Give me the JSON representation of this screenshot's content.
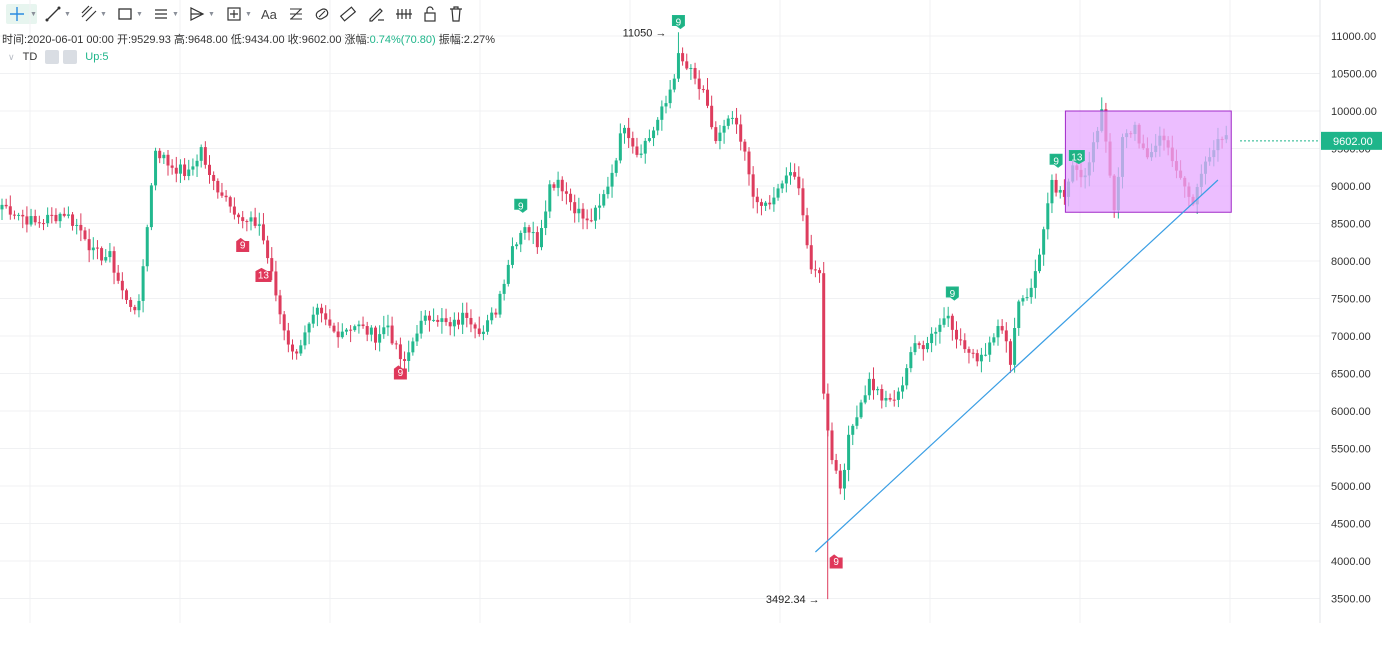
{
  "toolbar": {
    "text_tool_label": "Aa",
    "tools": [
      "crosshair-icon",
      "trend-line-icon",
      "parallel-channel-icon",
      "rectangle-icon",
      "horizontal-lines-icon",
      "pattern-icon",
      "measure-icon",
      "text-icon",
      "fib-icon",
      "brush-icon",
      "ruler-icon",
      "pencil-icon",
      "chart-tools-icon",
      "lock-icon",
      "trash-icon"
    ]
  },
  "info_bar": {
    "time_label": "时间:",
    "time": "2020-06-01 00:00",
    "open_label": "开:",
    "open": "9529.93",
    "high_label": "高:",
    "high": "9648.00",
    "low_label": "低:",
    "low": "9434.00",
    "close_label": "收:",
    "close": "9602.00",
    "change_label": "涨幅:",
    "change": "0.74%(70.80)",
    "amplitude_label": "振幅:",
    "amplitude": "2.27%"
  },
  "indicator": {
    "name": "TD",
    "setting": "Up:5"
  },
  "colors": {
    "up": "#22b88e",
    "down": "#dd3c5d",
    "grid": "#f0f1f3",
    "trendline": "#3a9ee4",
    "box_fill": "#e5a8ff",
    "box_stroke": "#a028c8",
    "price_tag": "#1eb58a"
  },
  "chart_data": {
    "type": "candlestick",
    "y_ticks": [
      "11000.00",
      "10500.00",
      "10000.00",
      "9500.00",
      "9000.00",
      "8500.00",
      "8000.00",
      "7500.00",
      "7000.00",
      "6500.00",
      "6000.00",
      "5500.00",
      "5000.00",
      "4500.00",
      "4000.00",
      "3500.00"
    ],
    "ylim": [
      3400,
      11400
    ],
    "current_price": "9602.00",
    "high_annotation": {
      "label": "11050",
      "value": 11050
    },
    "low_annotation": {
      "label": "3492.34",
      "value": 3492.34
    },
    "td_markers": [
      {
        "label": "9",
        "kind": "down",
        "x_index": 58,
        "value": 8300
      },
      {
        "label": "13",
        "kind": "down",
        "x_index": 63,
        "value": 7900
      },
      {
        "label": "9",
        "kind": "down",
        "x_index": 96,
        "value": 6600
      },
      {
        "label": "9",
        "kind": "up",
        "x_index": 125,
        "value": 8650
      },
      {
        "label": "9",
        "kind": "up",
        "x_index": 163,
        "value": 11100
      },
      {
        "label": "9",
        "kind": "down",
        "x_index": 201,
        "value": 4080
      },
      {
        "label": "9",
        "kind": "up",
        "x_index": 229,
        "value": 7480
      },
      {
        "label": "9",
        "kind": "up",
        "x_index": 254,
        "value": 9250
      },
      {
        "label": "13",
        "kind": "up",
        "x_index": 259,
        "value": 9300
      }
    ],
    "trendline": [
      {
        "x_index": 196,
        "value": 4120
      },
      {
        "x_index": 293,
        "value": 9080
      }
    ],
    "range_box": {
      "x_start": 256,
      "x_end": 295,
      "top": 10000,
      "bottom": 8650
    },
    "anchors": [
      [
        0,
        8750
      ],
      [
        8,
        8500
      ],
      [
        15,
        8650
      ],
      [
        20,
        8350
      ],
      [
        22,
        8100
      ],
      [
        26,
        8050
      ],
      [
        30,
        7450
      ],
      [
        33,
        7380
      ],
      [
        35,
        8500
      ],
      [
        37,
        9500
      ],
      [
        40,
        9300
      ],
      [
        45,
        9150
      ],
      [
        48,
        9500
      ],
      [
        50,
        9100
      ],
      [
        55,
        8800
      ],
      [
        58,
        8500
      ],
      [
        62,
        8500
      ],
      [
        64,
        8050
      ],
      [
        67,
        7300
      ],
      [
        70,
        6750
      ],
      [
        73,
        7000
      ],
      [
        76,
        7300
      ],
      [
        80,
        7050
      ],
      [
        85,
        7150
      ],
      [
        90,
        7000
      ],
      [
        93,
        7150
      ],
      [
        95,
        6800
      ],
      [
        97,
        6600
      ],
      [
        100,
        7100
      ],
      [
        104,
        7300
      ],
      [
        108,
        7100
      ],
      [
        112,
        7300
      ],
      [
        116,
        7050
      ],
      [
        119,
        7350
      ],
      [
        123,
        8200
      ],
      [
        126,
        8500
      ],
      [
        129,
        8250
      ],
      [
        132,
        9000
      ],
      [
        134,
        9100
      ],
      [
        137,
        8800
      ],
      [
        141,
        8500
      ],
      [
        144,
        8700
      ],
      [
        147,
        9200
      ],
      [
        150,
        9850
      ],
      [
        153,
        9450
      ],
      [
        156,
        9650
      ],
      [
        160,
        10100
      ],
      [
        163,
        10700
      ],
      [
        166,
        10500
      ],
      [
        169,
        10200
      ],
      [
        172,
        9600
      ],
      [
        176,
        9900
      ],
      [
        179,
        9400
      ],
      [
        182,
        8700
      ],
      [
        186,
        8800
      ],
      [
        189,
        9150
      ],
      [
        192,
        9050
      ],
      [
        195,
        7800
      ],
      [
        197,
        7900
      ],
      [
        198,
        6200
      ],
      [
        200,
        5400
      ],
      [
        202,
        5000
      ],
      [
        204,
        5600
      ],
      [
        206,
        6000
      ],
      [
        209,
        6400
      ],
      [
        213,
        6100
      ],
      [
        216,
        6200
      ],
      [
        219,
        6800
      ],
      [
        222,
        6900
      ],
      [
        225,
        7100
      ],
      [
        228,
        7300
      ],
      [
        231,
        6900
      ],
      [
        234,
        6700
      ],
      [
        237,
        6800
      ],
      [
        240,
        7200
      ],
      [
        243,
        6700
      ],
      [
        245,
        7500
      ],
      [
        248,
        7600
      ],
      [
        251,
        8400
      ],
      [
        253,
        9000
      ],
      [
        256,
        8800
      ],
      [
        258,
        9350
      ],
      [
        261,
        9100
      ],
      [
        263,
        9500
      ],
      [
        265,
        10050
      ],
      [
        267,
        9200
      ],
      [
        268,
        8600
      ],
      [
        270,
        9600
      ],
      [
        273,
        9800
      ],
      [
        276,
        9300
      ],
      [
        279,
        9700
      ],
      [
        282,
        9400
      ],
      [
        284,
        9050
      ],
      [
        287,
        8750
      ],
      [
        290,
        9400
      ],
      [
        293,
        9550
      ],
      [
        295,
        9602
      ]
    ]
  }
}
